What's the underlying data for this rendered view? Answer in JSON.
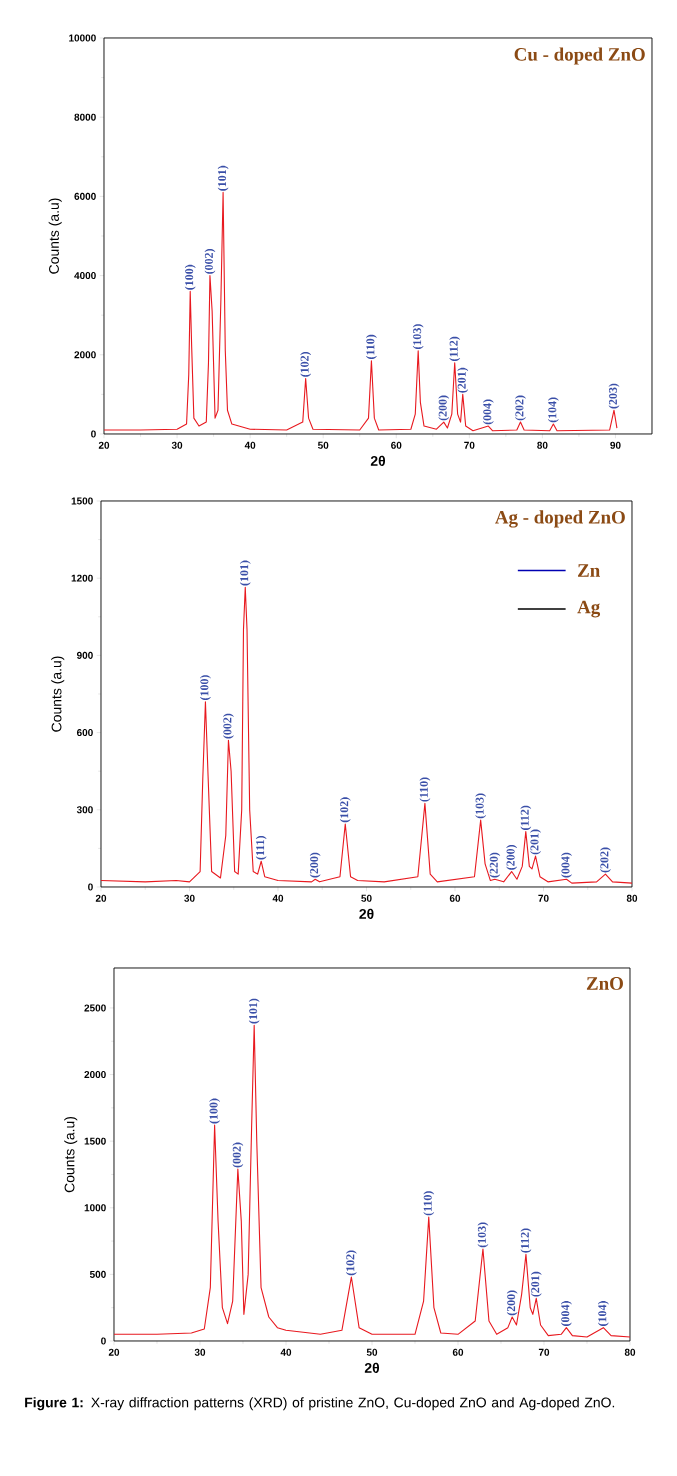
{
  "chart_data": [
    {
      "type": "line",
      "title": "Cu - doped ZnO",
      "xlabel": "2θ",
      "ylabel": "Counts (a.u)",
      "xlim": [
        20,
        95
      ],
      "ylim": [
        0,
        10000
      ],
      "xticks": [
        20,
        30,
        40,
        50,
        60,
        70,
        80,
        90
      ],
      "yticks": [
        0,
        2000,
        4000,
        6000,
        8000,
        10000
      ],
      "marker": "none",
      "series": [
        {
          "color": "#e8191f",
          "x": [
            20,
            25,
            30,
            31.3,
            31.6,
            31.8,
            32.0,
            32.3,
            33,
            34.0,
            34.3,
            34.5,
            34.8,
            35.2,
            35.6,
            36.0,
            36.3,
            36.6,
            36.9,
            37.5,
            40,
            45,
            47.2,
            47.6,
            48.0,
            48.6,
            55,
            56.2,
            56.6,
            57.0,
            57.6,
            62,
            62.6,
            63.0,
            63.3,
            63.8,
            65.5,
            66.5,
            67,
            67.6,
            68.0,
            68.4,
            68.8,
            69.1,
            69.5,
            70.5,
            72.6,
            73.2,
            76.5,
            77.0,
            77.5,
            81,
            81.5,
            82,
            89.2,
            89.8,
            90.2
          ],
          "values": [
            100,
            100,
            120,
            250,
            1500,
            3600,
            2200,
            400,
            200,
            300,
            1800,
            4000,
            3100,
            400,
            600,
            3400,
            6100,
            2100,
            600,
            250,
            120,
            100,
            300,
            1400,
            400,
            120,
            100,
            400,
            1850,
            400,
            100,
            120,
            500,
            2100,
            800,
            200,
            120,
            300,
            150,
            500,
            1800,
            500,
            300,
            1000,
            200,
            80,
            200,
            80,
            100,
            300,
            100,
            80,
            250,
            80,
            100,
            600,
            150
          ]
        }
      ],
      "annotations": [
        {
          "text": "(100)",
          "x": 31.8,
          "y": 3600
        },
        {
          "text": "(002)",
          "x": 34.5,
          "y": 4000
        },
        {
          "text": "(101)",
          "x": 36.3,
          "y": 6100
        },
        {
          "text": "(102)",
          "x": 47.6,
          "y": 1400
        },
        {
          "text": "(110)",
          "x": 56.6,
          "y": 1850
        },
        {
          "text": "(103)",
          "x": 63.0,
          "y": 2100
        },
        {
          "text": "(200)",
          "x": 66.5,
          "y": 300
        },
        {
          "text": "(112)",
          "x": 68.0,
          "y": 1800
        },
        {
          "text": "(201)",
          "x": 69.1,
          "y": 1000
        },
        {
          "text": "(004)",
          "x": 72.6,
          "y": 200
        },
        {
          "text": "(202)",
          "x": 77.0,
          "y": 300
        },
        {
          "text": "(104)",
          "x": 81.5,
          "y": 250
        },
        {
          "text": "(203)",
          "x": 89.8,
          "y": 600
        }
      ]
    },
    {
      "type": "line",
      "title": "Ag - doped ZnO",
      "xlabel": "2θ",
      "ylabel": "Counts (a.u)",
      "xlim": [
        20,
        80
      ],
      "ylim": [
        0,
        1500
      ],
      "xticks": [
        20,
        30,
        40,
        50,
        60,
        70,
        80
      ],
      "yticks": [
        0,
        300,
        600,
        900,
        1200,
        1500
      ],
      "marker": "none",
      "series": [
        {
          "color": "#e8191f",
          "x": [
            20,
            25,
            28.5,
            30,
            31.2,
            31.5,
            31.8,
            32.1,
            32.5,
            33.5,
            34.1,
            34.4,
            34.7,
            35.1,
            35.5,
            35.9,
            36.1,
            36.3,
            36.5,
            36.8,
            37.2,
            37.7,
            38.1,
            38.5,
            40,
            43.8,
            44.2,
            44.7,
            47.0,
            47.6,
            48.2,
            49,
            52,
            55.8,
            56.6,
            57.2,
            58,
            62.2,
            62.9,
            63.4,
            64.0,
            64.5,
            65.5,
            66.4,
            67,
            67.6,
            68.0,
            68.4,
            68.7,
            69.1,
            69.6,
            70.5,
            72.6,
            73.2,
            76,
            77.0,
            77.8,
            80
          ],
          "values": [
            25,
            20,
            25,
            20,
            60,
            420,
            720,
            430,
            60,
            35,
            200,
            570,
            450,
            60,
            50,
            300,
            1000,
            1165,
            1000,
            300,
            60,
            50,
            100,
            40,
            25,
            20,
            30,
            20,
            40,
            245,
            40,
            25,
            20,
            40,
            325,
            50,
            20,
            40,
            260,
            90,
            25,
            30,
            20,
            60,
            30,
            80,
            215,
            80,
            70,
            120,
            40,
            20,
            30,
            15,
            20,
            50,
            20,
            15
          ]
        }
      ],
      "annotations": [
        {
          "text": "(100)",
          "x": 31.8,
          "y": 720
        },
        {
          "text": "(002)",
          "x": 34.4,
          "y": 570
        },
        {
          "text": "(101)",
          "x": 36.3,
          "y": 1165
        },
        {
          "text": "(111)",
          "x": 38.1,
          "y": 100
        },
        {
          "text": "(200)",
          "x": 44.2,
          "y": 30
        },
        {
          "text": "(102)",
          "x": 47.6,
          "y": 245
        },
        {
          "text": "(110)",
          "x": 56.6,
          "y": 325
        },
        {
          "text": "(103)",
          "x": 62.9,
          "y": 260
        },
        {
          "text": "(220)",
          "x": 64.5,
          "y": 30
        },
        {
          "text": "(200)",
          "x": 66.4,
          "y": 60
        },
        {
          "text": "(112)",
          "x": 68.0,
          "y": 215
        },
        {
          "text": "(201)",
          "x": 69.1,
          "y": 120
        },
        {
          "text": "(004)",
          "x": 72.6,
          "y": 30
        },
        {
          "text": "(202)",
          "x": 77.0,
          "y": 50
        },
        "Zn",
        "Ag"
      ]
    },
    {
      "type": "line",
      "title": "ZnO",
      "xlabel": "2θ",
      "ylabel": "Counts (a.u)",
      "xlim": [
        20,
        80
      ],
      "ylim": [
        0,
        2800
      ],
      "xticks": [
        20,
        30,
        40,
        50,
        60,
        70,
        80
      ],
      "yticks": [
        0,
        500,
        1000,
        1500,
        2000,
        2500
      ],
      "marker": "none",
      "series": [
        {
          "color": "#e8191f",
          "x": [
            20,
            25,
            29,
            30.5,
            31.2,
            31.7,
            32.1,
            32.6,
            33.2,
            33.8,
            34.4,
            34.8,
            35.1,
            35.6,
            36.0,
            36.3,
            36.6,
            37.1,
            38,
            39,
            40,
            44,
            46.5,
            47.6,
            48.5,
            50,
            55,
            56.0,
            56.6,
            57.2,
            58,
            60,
            62.0,
            62.9,
            63.6,
            64.5,
            65.8,
            66.3,
            66.8,
            67.4,
            67.9,
            68.4,
            68.7,
            69.1,
            69.6,
            70.5,
            72.0,
            72.6,
            73.3,
            75,
            76.9,
            77.8,
            80
          ],
          "values": [
            50,
            50,
            60,
            90,
            400,
            1620,
            900,
            250,
            130,
            300,
            1290,
            900,
            200,
            500,
            1600,
            2370,
            1500,
            400,
            180,
            100,
            80,
            50,
            80,
            480,
            100,
            50,
            50,
            300,
            930,
            250,
            60,
            50,
            150,
            690,
            150,
            50,
            100,
            180,
            120,
            350,
            650,
            250,
            200,
            320,
            120,
            40,
            50,
            100,
            40,
            30,
            100,
            40,
            30
          ]
        }
      ],
      "annotations": [
        {
          "text": "(100)",
          "x": 31.7,
          "y": 1620
        },
        {
          "text": "(002)",
          "x": 34.4,
          "y": 1290
        },
        {
          "text": "(101)",
          "x": 36.3,
          "y": 2370
        },
        {
          "text": "(102)",
          "x": 47.6,
          "y": 480
        },
        {
          "text": "(110)",
          "x": 56.6,
          "y": 930
        },
        {
          "text": "(103)",
          "x": 62.9,
          "y": 690
        },
        {
          "text": "(200)",
          "x": 66.3,
          "y": 180
        },
        {
          "text": "(112)",
          "x": 67.9,
          "y": 650
        },
        {
          "text": "(201)",
          "x": 69.1,
          "y": 320
        },
        {
          "text": "(004)",
          "x": 72.6,
          "y": 100
        },
        {
          "text": "(104)",
          "x": 76.9,
          "y": 100
        },
        "**Figure 1:** X-ray diffraction patterns (XRD) of pristine ZnO, Cu-doped ZnO and Ag-doped ZnO."
      ]
    }
  ]
}
